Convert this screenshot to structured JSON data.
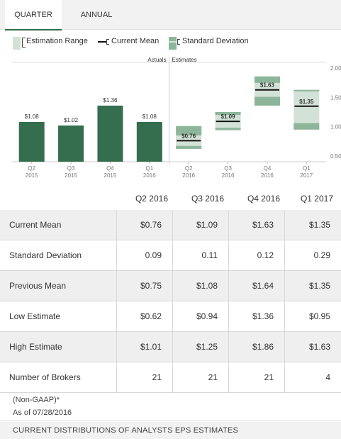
{
  "tabs": [
    {
      "label": "QUARTER",
      "active": true
    },
    {
      "label": "ANNUAL",
      "active": false
    }
  ],
  "legend": {
    "estimation_range": "Estimation Range",
    "current_mean": "Current Mean",
    "standard_deviation": "Standard Deviation"
  },
  "chart_data": {
    "type": "bar",
    "section_labels": {
      "actuals": "Actuals",
      "estimates": "Estimates"
    },
    "y_ticks": [
      "2.00",
      "1.50",
      "1.00",
      "0.50"
    ],
    "ylim": [
      0.4,
      2.1
    ],
    "colors": {
      "actual_bar": "#356e4e",
      "deviation": "#8db59a",
      "range": "#d2e2d6",
      "mean": "#111111"
    },
    "actuals": [
      {
        "period": "Q2 2015",
        "q": "Q2",
        "y": "2015",
        "value": 1.08,
        "label": "$1.08"
      },
      {
        "period": "Q3 2015",
        "q": "Q3",
        "y": "2015",
        "value": 1.02,
        "label": "$1.02"
      },
      {
        "period": "Q4 2015",
        "q": "Q4",
        "y": "2015",
        "value": 1.36,
        "label": "$1.36"
      },
      {
        "period": "Q1 2016",
        "q": "Q1",
        "y": "2016",
        "value": 1.08,
        "label": "$1.08"
      }
    ],
    "estimates": [
      {
        "period": "Q2 2016",
        "q": "Q2",
        "y": "2016",
        "mean": 0.76,
        "label": "$0.76",
        "std_dev": 0.09,
        "low": 0.62,
        "high": 1.01
      },
      {
        "period": "Q3 2016",
        "q": "Q3",
        "y": "2016",
        "mean": 1.09,
        "label": "$1.09",
        "std_dev": 0.11,
        "low": 0.94,
        "high": 1.25
      },
      {
        "period": "Q4 2016",
        "q": "Q4",
        "y": "2016",
        "mean": 1.63,
        "label": "$1.63",
        "std_dev": 0.12,
        "low": 1.36,
        "high": 1.86
      },
      {
        "period": "Q1 2017",
        "q": "Q1",
        "y": "2017",
        "mean": 1.35,
        "label": "$1.35",
        "std_dev": 0.29,
        "low": 0.95,
        "high": 1.63
      }
    ]
  },
  "table": {
    "columns": [
      "Q2 2016",
      "Q3 2016",
      "Q4 2016",
      "Q1 2017"
    ],
    "rows": [
      {
        "label": "Current Mean",
        "values": [
          "$0.76",
          "$1.09",
          "$1.63",
          "$1.35"
        ]
      },
      {
        "label": "Standard Deviation",
        "values": [
          "0.09",
          "0.11",
          "0.12",
          "0.29"
        ]
      },
      {
        "label": "Previous Mean",
        "values": [
          "$0.75",
          "$1.08",
          "$1.64",
          "$1.35"
        ]
      },
      {
        "label": "Low Estimate",
        "values": [
          "$0.62",
          "$0.94",
          "$1.36",
          "$0.95"
        ]
      },
      {
        "label": "High Estimate",
        "values": [
          "$1.01",
          "$1.25",
          "$1.86",
          "$1.63"
        ]
      },
      {
        "label": "Number of Brokers",
        "values": [
          "21",
          "21",
          "21",
          "4"
        ]
      }
    ]
  },
  "footer": {
    "note": "(Non-GAAP)*",
    "as_of": "As of 07/28/2016",
    "section_title": "CURRENT DISTRIBUTIONS OF ANALYSTS EPS ESTIMATES"
  }
}
